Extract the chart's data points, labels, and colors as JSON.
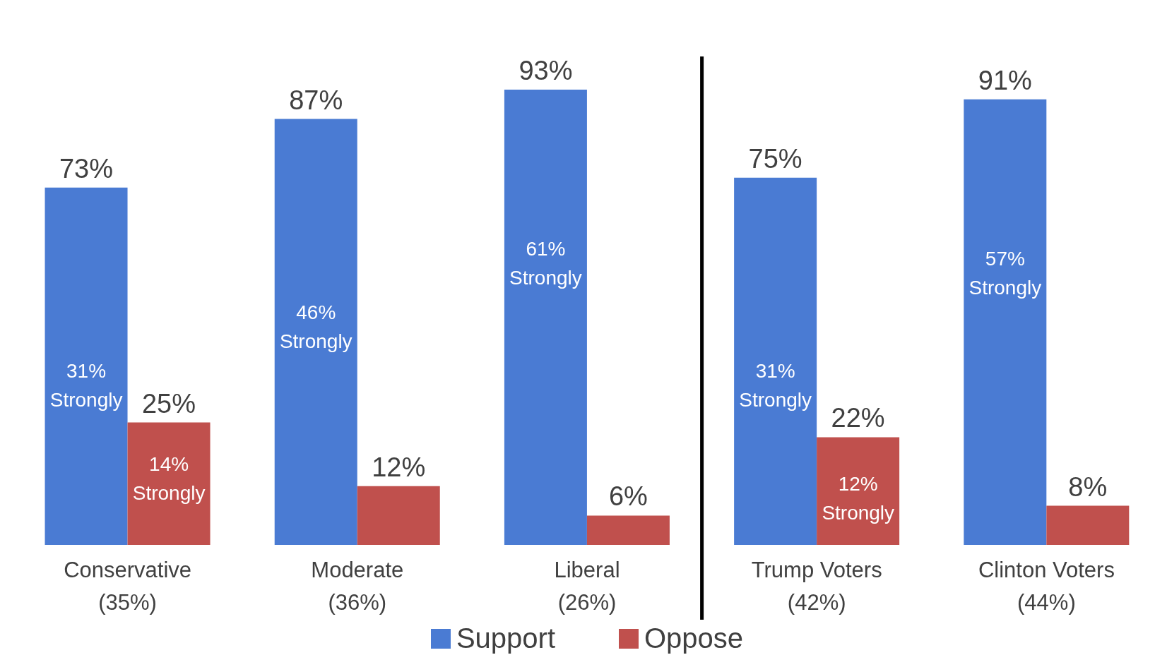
{
  "chart_data": {
    "type": "bar",
    "categories": [
      "Conservative\n(35%)",
      "Moderate\n(36%)",
      "Liberal\n(26%)",
      "Trump Voters\n(42%)",
      "Clinton Voters\n(44%)"
    ],
    "series": [
      {
        "name": "Support",
        "color": "#4a7bd3",
        "values": [
          73,
          87,
          93,
          75,
          91
        ],
        "value_labels": [
          "73%",
          "87%",
          "93%",
          "75%",
          "91%"
        ]
      },
      {
        "name": "Oppose",
        "color": "#c0504d",
        "values": [
          25,
          12,
          6,
          22,
          8
        ],
        "value_labels": [
          "25%",
          "12%",
          "6%",
          "22%",
          "8%"
        ]
      }
    ],
    "annotations": [
      {
        "text": "31%\nStrongly",
        "x": "Conservative\n(35%)",
        "y": 32
      },
      {
        "text": "46%\nStrongly",
        "x": "Moderate\n(36%)",
        "y": 44
      },
      {
        "text": "61%\nStrongly",
        "x": "Liberal\n(26%)",
        "y": 57
      },
      {
        "text": "31%\nStrongly",
        "x": "Trump Voters\n(42%)",
        "y": 32
      },
      {
        "text": "57%\nStrongly",
        "x": "Clinton Voters\n(44%)",
        "y": 55
      },
      {
        "text": "14%\nStrongly",
        "x": "Conservative\n(35%)",
        "y": 13
      },
      {
        "text": "12%\nStrongly",
        "x": "Trump Voters\n(42%)",
        "y": 9
      }
    ],
    "legend": "bottom",
    "grid": false
  }
}
